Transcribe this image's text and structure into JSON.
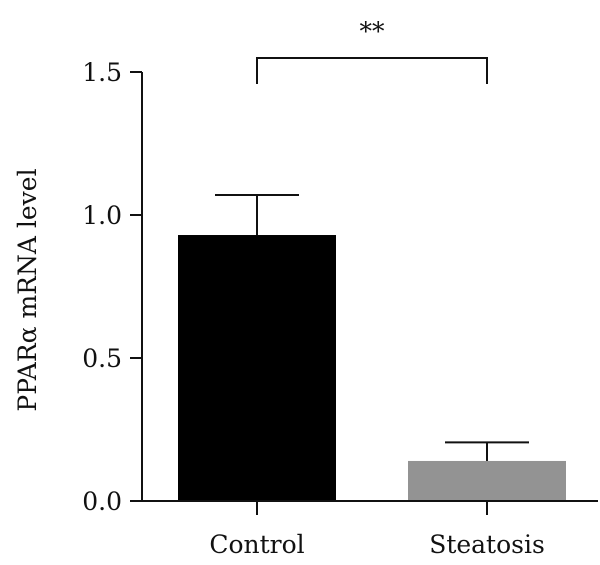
{
  "chart_data": {
    "type": "bar",
    "title": "",
    "xlabel": "",
    "ylabel": "PPARα mRNA level",
    "categories": [
      "Control",
      "Steatosis"
    ],
    "values": [
      0.93,
      0.14
    ],
    "error_upper": [
      0.14,
      0.065
    ],
    "bar_colors": [
      "#000000",
      "#939393"
    ],
    "ylim": [
      0,
      1.5
    ],
    "yticks": [
      0.0,
      0.5,
      1.0,
      1.5
    ],
    "ytick_labels": [
      "0.0",
      "0.5",
      "1.0",
      "1.5"
    ],
    "grid": false,
    "significance": {
      "between": [
        "Control",
        "Steatosis"
      ],
      "label": "**"
    }
  }
}
